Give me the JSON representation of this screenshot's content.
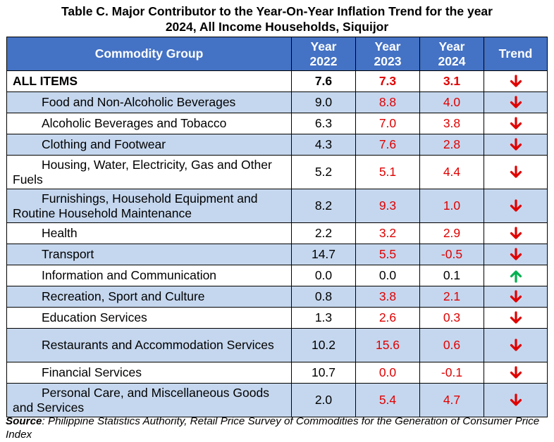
{
  "title": {
    "line1": "Table C. Major Contributor to the Year-On-Year Inflation Trend for the year",
    "line2": "2024, All Income Households, Siquijor"
  },
  "header": {
    "group": "Commodity Group",
    "y2022_a": "Year",
    "y2022_b": "2022",
    "y2023_a": "Year",
    "y2023_b": "2023",
    "y2024_a": "Year",
    "y2024_b": "2024",
    "trend": "Trend"
  },
  "colors": {
    "header_bg": "#4472c4",
    "shade": "#c5d7ee",
    "red": "#e00000",
    "green": "#00b050"
  },
  "rows": [
    {
      "group": "ALL ITEMS",
      "y2022": "7.6",
      "y2023": "7.3",
      "y2024": "3.1",
      "trend": "down-arrow-icon"
    },
    {
      "group": "Food and Non-Alcoholic Beverages",
      "y2022": "9.0",
      "y2023": "8.8",
      "y2024": "4.0",
      "trend": "down-arrow-icon"
    },
    {
      "group": "Alcoholic Beverages and Tobacco",
      "y2022": "6.3",
      "y2023": "7.0",
      "y2024": "3.8",
      "trend": "down-arrow-icon"
    },
    {
      "group": "Clothing and Footwear",
      "y2022": "4.3",
      "y2023": "7.6",
      "y2024": "2.8",
      "trend": "down-arrow-icon"
    },
    {
      "group": "Housing, Water, Electricity, Gas and Other Fuels",
      "y2022": "5.2",
      "y2023": "5.1",
      "y2024": "4.4",
      "trend": "down-arrow-icon"
    },
    {
      "group": "Furnishings, Household Equipment and Routine Household Maintenance",
      "y2022": "8.2",
      "y2023": "9.3",
      "y2024": "1.0",
      "trend": "down-arrow-icon"
    },
    {
      "group": "Health",
      "y2022": "2.2",
      "y2023": "3.2",
      "y2024": "2.9",
      "trend": "down-arrow-icon"
    },
    {
      "group": "Transport",
      "y2022": "14.7",
      "y2023": "5.5",
      "y2024": "-0.5",
      "trend": "down-arrow-icon"
    },
    {
      "group": "Information and Communication",
      "y2022": "0.0",
      "y2023": "0.0",
      "y2024": "0.1",
      "trend": "up-arrow-icon"
    },
    {
      "group": "Recreation, Sport and Culture",
      "y2022": "0.8",
      "y2023": "3.8",
      "y2024": "2.1",
      "trend": "down-arrow-icon"
    },
    {
      "group": "Education Services",
      "y2022": "1.3",
      "y2023": "2.6",
      "y2024": "0.3",
      "trend": "down-arrow-icon"
    },
    {
      "group": "Restaurants and Accommodation Services",
      "y2022": "10.2",
      "y2023": "15.6",
      "y2024": "0.6",
      "trend": "down-arrow-icon"
    },
    {
      "group": "Financial Services",
      "y2022": "10.7",
      "y2023": "0.0",
      "y2024": "-0.1",
      "trend": "down-arrow-icon"
    },
    {
      "group": "Personal Care, and Miscellaneous Goods and Services",
      "y2022": "2.0",
      "y2023": "5.4",
      "y2024": "4.7",
      "trend": "down-arrow-icon"
    }
  ],
  "source": {
    "label": "Source",
    "text": ": Philippine Statistics Authority, Retail Price Survey of Commodities for the Generation of Consumer Price Index"
  }
}
